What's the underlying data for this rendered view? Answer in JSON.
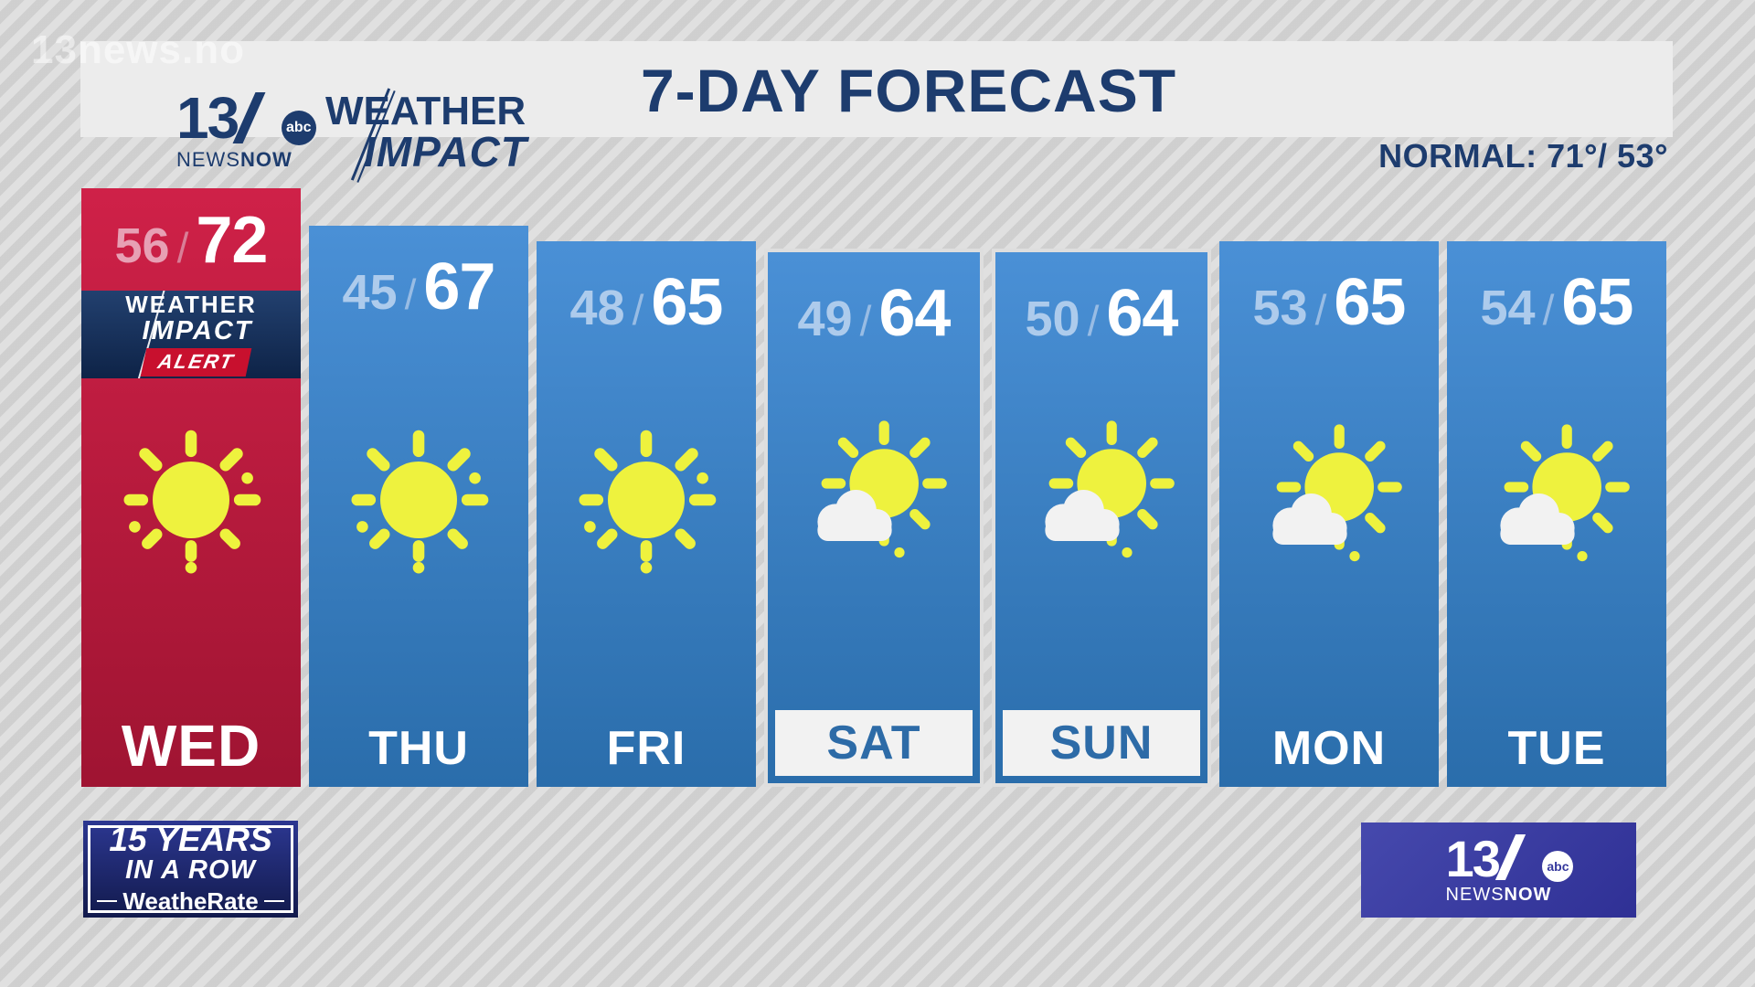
{
  "watermark": "13news.no",
  "header": {
    "title": "7-DAY FORECAST",
    "normal": "NORMAL: 71°/ 53°",
    "station": {
      "number": "13",
      "network": "abc",
      "news": "NEWS",
      "now": "NOW"
    },
    "brand": {
      "weather": "WEATHER",
      "impact": "IMPACT"
    }
  },
  "forecast": {
    "slash": "/",
    "alert": {
      "weather": "WEATHER",
      "impact": "IMPACT",
      "alert": "ALERT"
    },
    "days": [
      {
        "day": "WED",
        "low": "56",
        "high": 72,
        "icon": "sunny",
        "accent": "red",
        "alert": true,
        "weekend": false
      },
      {
        "day": "THU",
        "low": "45",
        "high": 67,
        "icon": "sunny",
        "accent": "blue",
        "alert": false,
        "weekend": false
      },
      {
        "day": "FRI",
        "low": "48",
        "high": 65,
        "icon": "sunny",
        "accent": "blue",
        "alert": false,
        "weekend": false
      },
      {
        "day": "SAT",
        "low": "49",
        "high": 64,
        "icon": "partly-cloudy",
        "accent": "blue",
        "alert": false,
        "weekend": true
      },
      {
        "day": "SUN",
        "low": "50",
        "high": 64,
        "icon": "partly-cloudy",
        "accent": "blue",
        "alert": false,
        "weekend": true
      },
      {
        "day": "MON",
        "low": "53",
        "high": 65,
        "icon": "partly-cloudy",
        "accent": "blue",
        "alert": false,
        "weekend": false
      },
      {
        "day": "TUE",
        "low": "54",
        "high": 65,
        "icon": "partly-cloudy",
        "accent": "blue",
        "alert": false,
        "weekend": false
      }
    ]
  },
  "footer": {
    "award": {
      "line1": "15 YEARS",
      "line2": "IN A ROW",
      "brand": "WeatheRate"
    },
    "station": {
      "number": "13",
      "network": "abc",
      "news": "NEWS",
      "now": "NOW"
    }
  },
  "colors": {
    "navy_text": "#1d3c6e",
    "red_top": "#cf2148",
    "red_bottom": "#9f1432",
    "blue_top": "#4a90d6",
    "blue_bottom": "#2a6dab",
    "alert_red": "#c8102e",
    "sun_yellow": "#eef23e",
    "cloud_white": "#f2f2f2",
    "weekend_label_blue": "#2d6ba7",
    "footer_indigo": "#35389d",
    "header_gray": "#ececec"
  },
  "chart_data": {
    "type": "table",
    "title": "7-DAY FORECAST",
    "categories": [
      "WED",
      "THU",
      "FRI",
      "SAT",
      "SUN",
      "MON",
      "TUE"
    ],
    "series": [
      {
        "name": "Low (°F)",
        "values": [
          56,
          45,
          48,
          49,
          50,
          53,
          54
        ]
      },
      {
        "name": "High (°F)",
        "values": [
          72,
          67,
          65,
          64,
          64,
          65,
          65
        ]
      }
    ],
    "conditions": [
      "sunny",
      "sunny",
      "sunny",
      "partly-cloudy",
      "partly-cloudy",
      "partly-cloudy",
      "partly-cloudy"
    ],
    "annotations": [
      "NORMAL: 71°/ 53°",
      "WEATHER IMPACT ALERT on WED",
      "column height scales with high temperature"
    ],
    "legend_position": "none",
    "grid": false
  }
}
